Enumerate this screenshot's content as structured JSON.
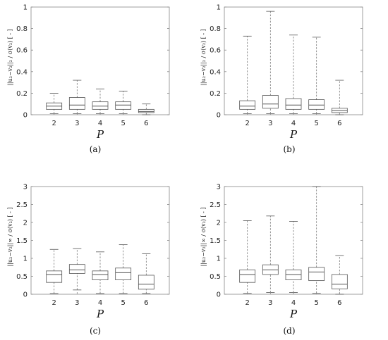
{
  "figure": {
    "background": "#ffffff",
    "box_color": "#555555",
    "whisker_color": "#777777",
    "frame_color": "#888888"
  },
  "chart_data": [
    {
      "type": "box",
      "caption": "(a)",
      "xlabel": "P",
      "ylabel": "||u₂−v₂||₂ / σ(v₂)  [ - ]",
      "ylim": [
        0,
        1
      ],
      "yticks": [
        "0",
        "0.2",
        "0.4",
        "0.6",
        "0.8",
        "1"
      ],
      "categories": [
        "2",
        "3",
        "4",
        "5",
        "6"
      ],
      "boxes": [
        {
          "min": 0.01,
          "q1": 0.05,
          "median": 0.08,
          "q3": 0.11,
          "max": 0.2
        },
        {
          "min": 0.01,
          "q1": 0.05,
          "median": 0.09,
          "q3": 0.16,
          "max": 0.32
        },
        {
          "min": 0.01,
          "q1": 0.05,
          "median": 0.08,
          "q3": 0.12,
          "max": 0.24
        },
        {
          "min": 0.01,
          "q1": 0.05,
          "median": 0.09,
          "q3": 0.12,
          "max": 0.22
        },
        {
          "min": 0.0,
          "q1": 0.02,
          "median": 0.03,
          "q3": 0.05,
          "max": 0.1
        }
      ]
    },
    {
      "type": "box",
      "caption": "(b)",
      "xlabel": "P",
      "ylabel": "||u₂−v₂||₂ / σ(v₂)  [ - ]",
      "ylim": [
        0,
        1
      ],
      "yticks": [
        "0",
        "0.2",
        "0.4",
        "0.6",
        "0.8",
        "1"
      ],
      "categories": [
        "2",
        "3",
        "4",
        "5",
        "6"
      ],
      "boxes": [
        {
          "min": 0.01,
          "q1": 0.05,
          "median": 0.08,
          "q3": 0.13,
          "max": 0.73
        },
        {
          "min": 0.01,
          "q1": 0.06,
          "median": 0.1,
          "q3": 0.18,
          "max": 0.96
        },
        {
          "min": 0.01,
          "q1": 0.05,
          "median": 0.09,
          "q3": 0.15,
          "max": 0.74
        },
        {
          "min": 0.01,
          "q1": 0.05,
          "median": 0.09,
          "q3": 0.14,
          "max": 0.72
        },
        {
          "min": 0.0,
          "q1": 0.02,
          "median": 0.04,
          "q3": 0.06,
          "max": 0.32
        }
      ]
    },
    {
      "type": "box",
      "caption": "(c)",
      "xlabel": "P",
      "ylabel": "||u₂−v₂||∞ / σ(v₂)  [ - ]",
      "ylim": [
        0,
        3
      ],
      "yticks": [
        "0",
        "0.5",
        "1",
        "1.5",
        "2",
        "2.5",
        "3"
      ],
      "categories": [
        "2",
        "3",
        "4",
        "5",
        "6"
      ],
      "boxes": [
        {
          "min": 0.02,
          "q1": 0.33,
          "median": 0.55,
          "q3": 0.65,
          "max": 1.25
        },
        {
          "min": 0.12,
          "q1": 0.58,
          "median": 0.68,
          "q3": 0.83,
          "max": 1.27
        },
        {
          "min": 0.02,
          "q1": 0.4,
          "median": 0.55,
          "q3": 0.65,
          "max": 1.18
        },
        {
          "min": 0.02,
          "q1": 0.4,
          "median": 0.6,
          "q3": 0.73,
          "max": 1.38
        },
        {
          "min": 0.02,
          "q1": 0.14,
          "median": 0.28,
          "q3": 0.53,
          "max": 1.13
        }
      ]
    },
    {
      "type": "box",
      "caption": "(d)",
      "xlabel": "P",
      "ylabel": "||u₂−v₂||∞ / σ(v₂)  [ - ]",
      "ylim": [
        0,
        3
      ],
      "yticks": [
        "0",
        "0.5",
        "1",
        "1.5",
        "2",
        "2.5",
        "3"
      ],
      "categories": [
        "2",
        "3",
        "4",
        "5",
        "6"
      ],
      "boxes": [
        {
          "min": 0.03,
          "q1": 0.33,
          "median": 0.55,
          "q3": 0.68,
          "max": 2.05
        },
        {
          "min": 0.05,
          "q1": 0.55,
          "median": 0.68,
          "q3": 0.82,
          "max": 2.18
        },
        {
          "min": 0.05,
          "q1": 0.4,
          "median": 0.55,
          "q3": 0.68,
          "max": 2.03
        },
        {
          "min": 0.03,
          "q1": 0.38,
          "median": 0.62,
          "q3": 0.75,
          "max": 3.0
        },
        {
          "min": 0.0,
          "q1": 0.15,
          "median": 0.28,
          "q3": 0.55,
          "max": 1.08
        }
      ]
    }
  ]
}
